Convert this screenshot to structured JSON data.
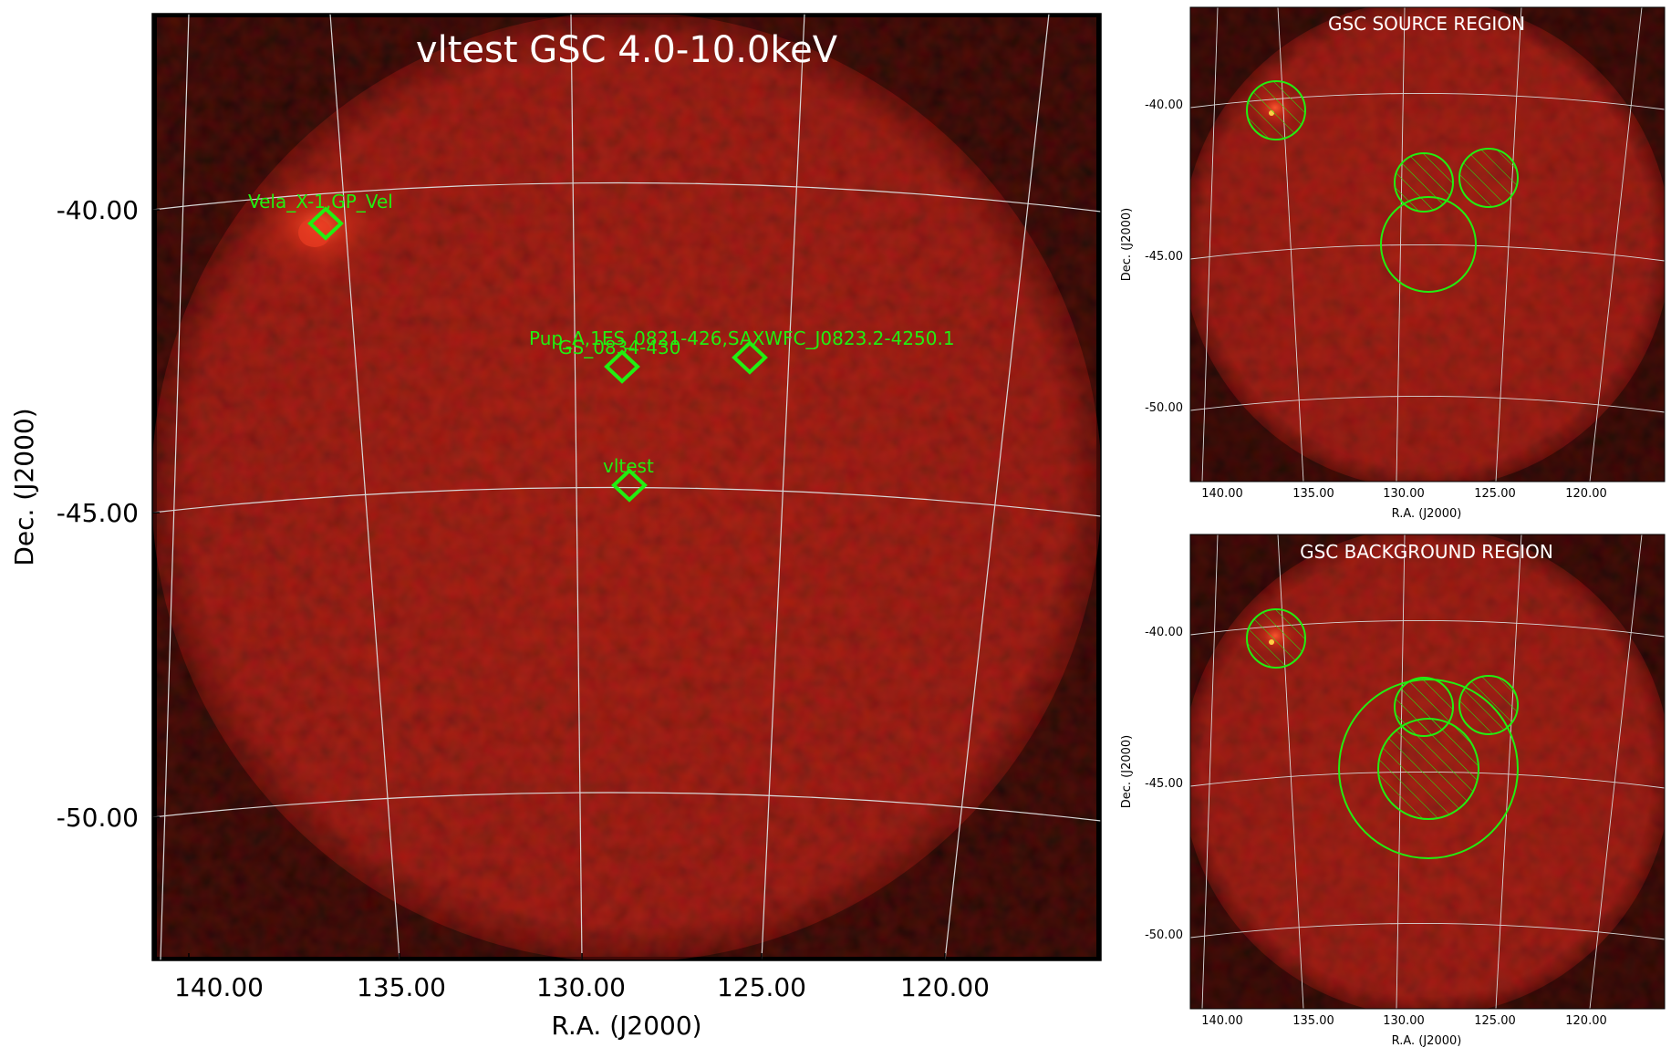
{
  "main_panel": {
    "title": "vltest GSC 4.0-10.0keV",
    "xlabel": "R.A. (J2000)",
    "ylabel": "Dec. (J2000)",
    "ra_ticks": [
      "140.00",
      "135.00",
      "130.00",
      "125.00",
      "120.00"
    ],
    "dec_ticks": [
      "-40.00",
      "-45.00",
      "-50.00"
    ],
    "sources": [
      {
        "label": "Vela_X-1,GP_Vel"
      },
      {
        "label": "Pup_A,1ES_0821-426,SAXWFC_J0823.2-4250.1"
      },
      {
        "label": "GS_0834-430"
      },
      {
        "label": "vltest"
      }
    ]
  },
  "source_panel": {
    "title": "GSC SOURCE REGION",
    "xlabel": "R.A. (J2000)",
    "ylabel": "Dec. (J2000)",
    "ra_ticks": [
      "140.00",
      "135.00",
      "130.00",
      "125.00",
      "120.00"
    ],
    "dec_ticks": [
      "-40.00",
      "-45.00",
      "-50.00"
    ]
  },
  "background_panel": {
    "title": "GSC BACKGROUND REGION",
    "xlabel": "R.A. (J2000)",
    "ylabel": "Dec. (J2000)",
    "ra_ticks": [
      "140.00",
      "135.00",
      "130.00",
      "125.00",
      "120.00"
    ],
    "dec_ticks": [
      "-40.00",
      "-45.00",
      "-50.00"
    ]
  },
  "colors": {
    "image_background": "#000000",
    "sky_red": "#8a1a10",
    "region_green": "#22ee11",
    "grid": "#d8d8d8"
  }
}
